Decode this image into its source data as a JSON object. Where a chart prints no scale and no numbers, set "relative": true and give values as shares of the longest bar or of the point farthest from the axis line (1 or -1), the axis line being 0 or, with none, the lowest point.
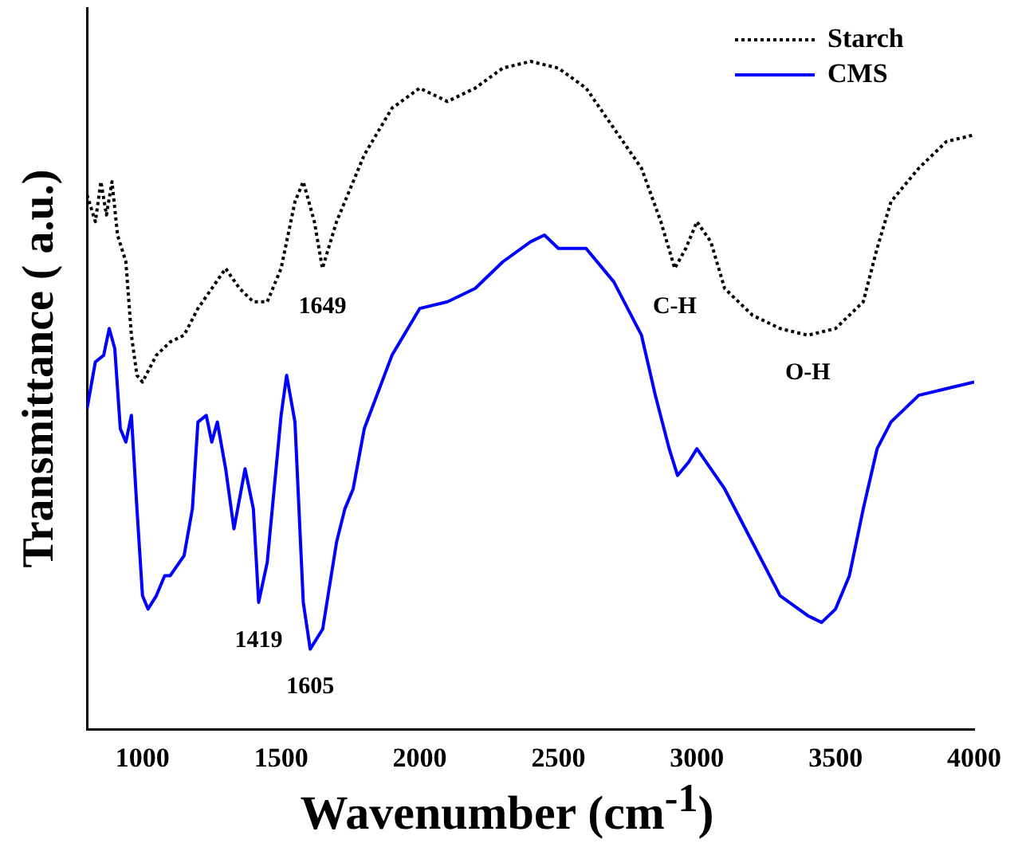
{
  "chart_data": {
    "type": "line",
    "relative": true,
    "xlabel": "Wavenumber (cm$^{-1}$)",
    "ylabel": "Transmittance ( a.u.)",
    "xlim": [
      800,
      4000
    ],
    "xticks": [
      1000,
      1500,
      2000,
      2500,
      3000,
      3500,
      4000
    ],
    "legend": "top right",
    "marker": "none",
    "grid": false,
    "series": [
      {
        "name": "Starch",
        "color": "#000000",
        "line_style": "dotted",
        "x": [
          800,
          830,
          850,
          870,
          890,
          910,
          940,
          960,
          980,
          1000,
          1050,
          1100,
          1150,
          1200,
          1250,
          1300,
          1350,
          1400,
          1450,
          1500,
          1550,
          1580,
          1620,
          1649,
          1700,
          1800,
          1900,
          2000,
          2100,
          2200,
          2300,
          2400,
          2500,
          2600,
          2700,
          2800,
          2870,
          2920,
          2960,
          3000,
          3050,
          3100,
          3200,
          3300,
          3400,
          3500,
          3600,
          3650,
          3700,
          3800,
          3900,
          4000
        ],
        "values": [
          0.8,
          0.76,
          0.82,
          0.77,
          0.82,
          0.74,
          0.7,
          0.59,
          0.53,
          0.52,
          0.56,
          0.58,
          0.59,
          0.63,
          0.66,
          0.69,
          0.66,
          0.64,
          0.64,
          0.69,
          0.79,
          0.82,
          0.76,
          0.69,
          0.76,
          0.86,
          0.93,
          0.96,
          0.94,
          0.96,
          0.99,
          1.0,
          0.99,
          0.96,
          0.9,
          0.84,
          0.76,
          0.69,
          0.72,
          0.76,
          0.73,
          0.66,
          0.62,
          0.6,
          0.59,
          0.6,
          0.64,
          0.72,
          0.79,
          0.84,
          0.88,
          0.89
        ]
      },
      {
        "name": "CMS",
        "color": "#0000ff",
        "line_style": "solid",
        "x": [
          800,
          830,
          860,
          880,
          900,
          920,
          940,
          960,
          980,
          1000,
          1020,
          1050,
          1080,
          1100,
          1150,
          1180,
          1200,
          1230,
          1250,
          1270,
          1300,
          1330,
          1370,
          1400,
          1419,
          1450,
          1500,
          1520,
          1550,
          1580,
          1605,
          1650,
          1700,
          1730,
          1760,
          1800,
          1900,
          2000,
          2100,
          2200,
          2300,
          2400,
          2450,
          2500,
          2600,
          2700,
          2800,
          2850,
          2900,
          2930,
          2970,
          3000,
          3100,
          3200,
          3300,
          3400,
          3450,
          3500,
          3550,
          3600,
          3650,
          3700,
          3800,
          3900,
          4000
        ],
        "values": [
          0.48,
          0.55,
          0.56,
          0.6,
          0.57,
          0.45,
          0.43,
          0.47,
          0.33,
          0.2,
          0.18,
          0.2,
          0.23,
          0.23,
          0.26,
          0.33,
          0.46,
          0.47,
          0.43,
          0.46,
          0.39,
          0.3,
          0.39,
          0.33,
          0.19,
          0.25,
          0.47,
          0.53,
          0.46,
          0.19,
          0.12,
          0.15,
          0.28,
          0.33,
          0.36,
          0.45,
          0.56,
          0.63,
          0.64,
          0.66,
          0.7,
          0.73,
          0.74,
          0.72,
          0.72,
          0.67,
          0.59,
          0.5,
          0.42,
          0.38,
          0.4,
          0.42,
          0.36,
          0.28,
          0.2,
          0.17,
          0.16,
          0.18,
          0.23,
          0.33,
          0.42,
          0.46,
          0.5,
          0.51,
          0.52
        ]
      }
    ],
    "annotations": [
      {
        "text": "1649",
        "x": 1649,
        "y": 0.69
      },
      {
        "text": "C-H",
        "x": 2920,
        "y": 0.69
      },
      {
        "text": "O-H",
        "x": 3400,
        "y": 0.59
      },
      {
        "text": "1419",
        "x": 1419,
        "y": 0.19
      },
      {
        "text": "1605",
        "x": 1605,
        "y": 0.12
      }
    ]
  }
}
